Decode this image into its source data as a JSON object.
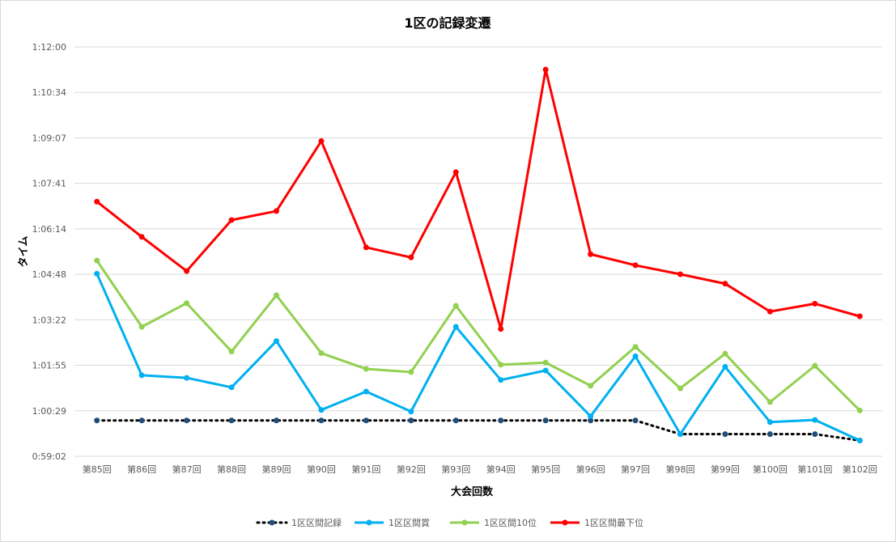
{
  "chart_data": {
    "type": "line",
    "title": "1区の記録変遷",
    "xlabel": "大会回数",
    "ylabel": "タイム",
    "categories": [
      "第85回",
      "第86回",
      "第87回",
      "第88回",
      "第89回",
      "第90回",
      "第91回",
      "第92回",
      "第93回",
      "第94回",
      "第95回",
      "第96回",
      "第97回",
      "第98回",
      "第99回",
      "第100回",
      "第101回",
      "第102回"
    ],
    "yticks": [
      "0:59:02",
      "1:00:29",
      "1:01:55",
      "1:03:22",
      "1:04:48",
      "1:06:14",
      "1:07:41",
      "1:09:07",
      "1:10:34",
      "1:12:00"
    ],
    "ylim_seconds": [
      3542,
      4320
    ],
    "series": [
      {
        "name": "1区区間記録",
        "color": "#000000",
        "marker_color": "#1f4e79",
        "dash": true,
        "values_seconds": [
          3610,
          3610,
          3610,
          3610,
          3610,
          3610,
          3610,
          3610,
          3610,
          3610,
          3610,
          3610,
          3610,
          3584,
          3584,
          3584,
          3584,
          3572
        ]
      },
      {
        "name": "1区区間賞",
        "color": "#00b0f0",
        "marker_color": "#00b0f0",
        "dash": false,
        "values_seconds": [
          3889,
          3696,
          3691,
          3673,
          3761,
          3630,
          3665,
          3627,
          3788,
          3687,
          3705,
          3618,
          3732,
          3584,
          3712,
          3607,
          3611,
          3572
        ]
      },
      {
        "name": "1区区間10位",
        "color": "#92d050",
        "marker_color": "#92d050",
        "dash": false,
        "values_seconds": [
          3914,
          3788,
          3833,
          3741,
          3848,
          3738,
          3708,
          3702,
          3828,
          3716,
          3720,
          3676,
          3750,
          3671,
          3737,
          3645,
          3714,
          3629
        ]
      },
      {
        "name": "1区区間最下位",
        "color": "#ff0000",
        "marker_color": "#ff0000",
        "dash": false,
        "values_seconds": [
          4026,
          3959,
          3894,
          3991,
          4008,
          4141,
          3939,
          3920,
          4082,
          3784,
          4277,
          3926,
          3905,
          3888,
          3870,
          3817,
          3832,
          3808
        ]
      }
    ],
    "legend_position": "bottom",
    "grid": true
  }
}
